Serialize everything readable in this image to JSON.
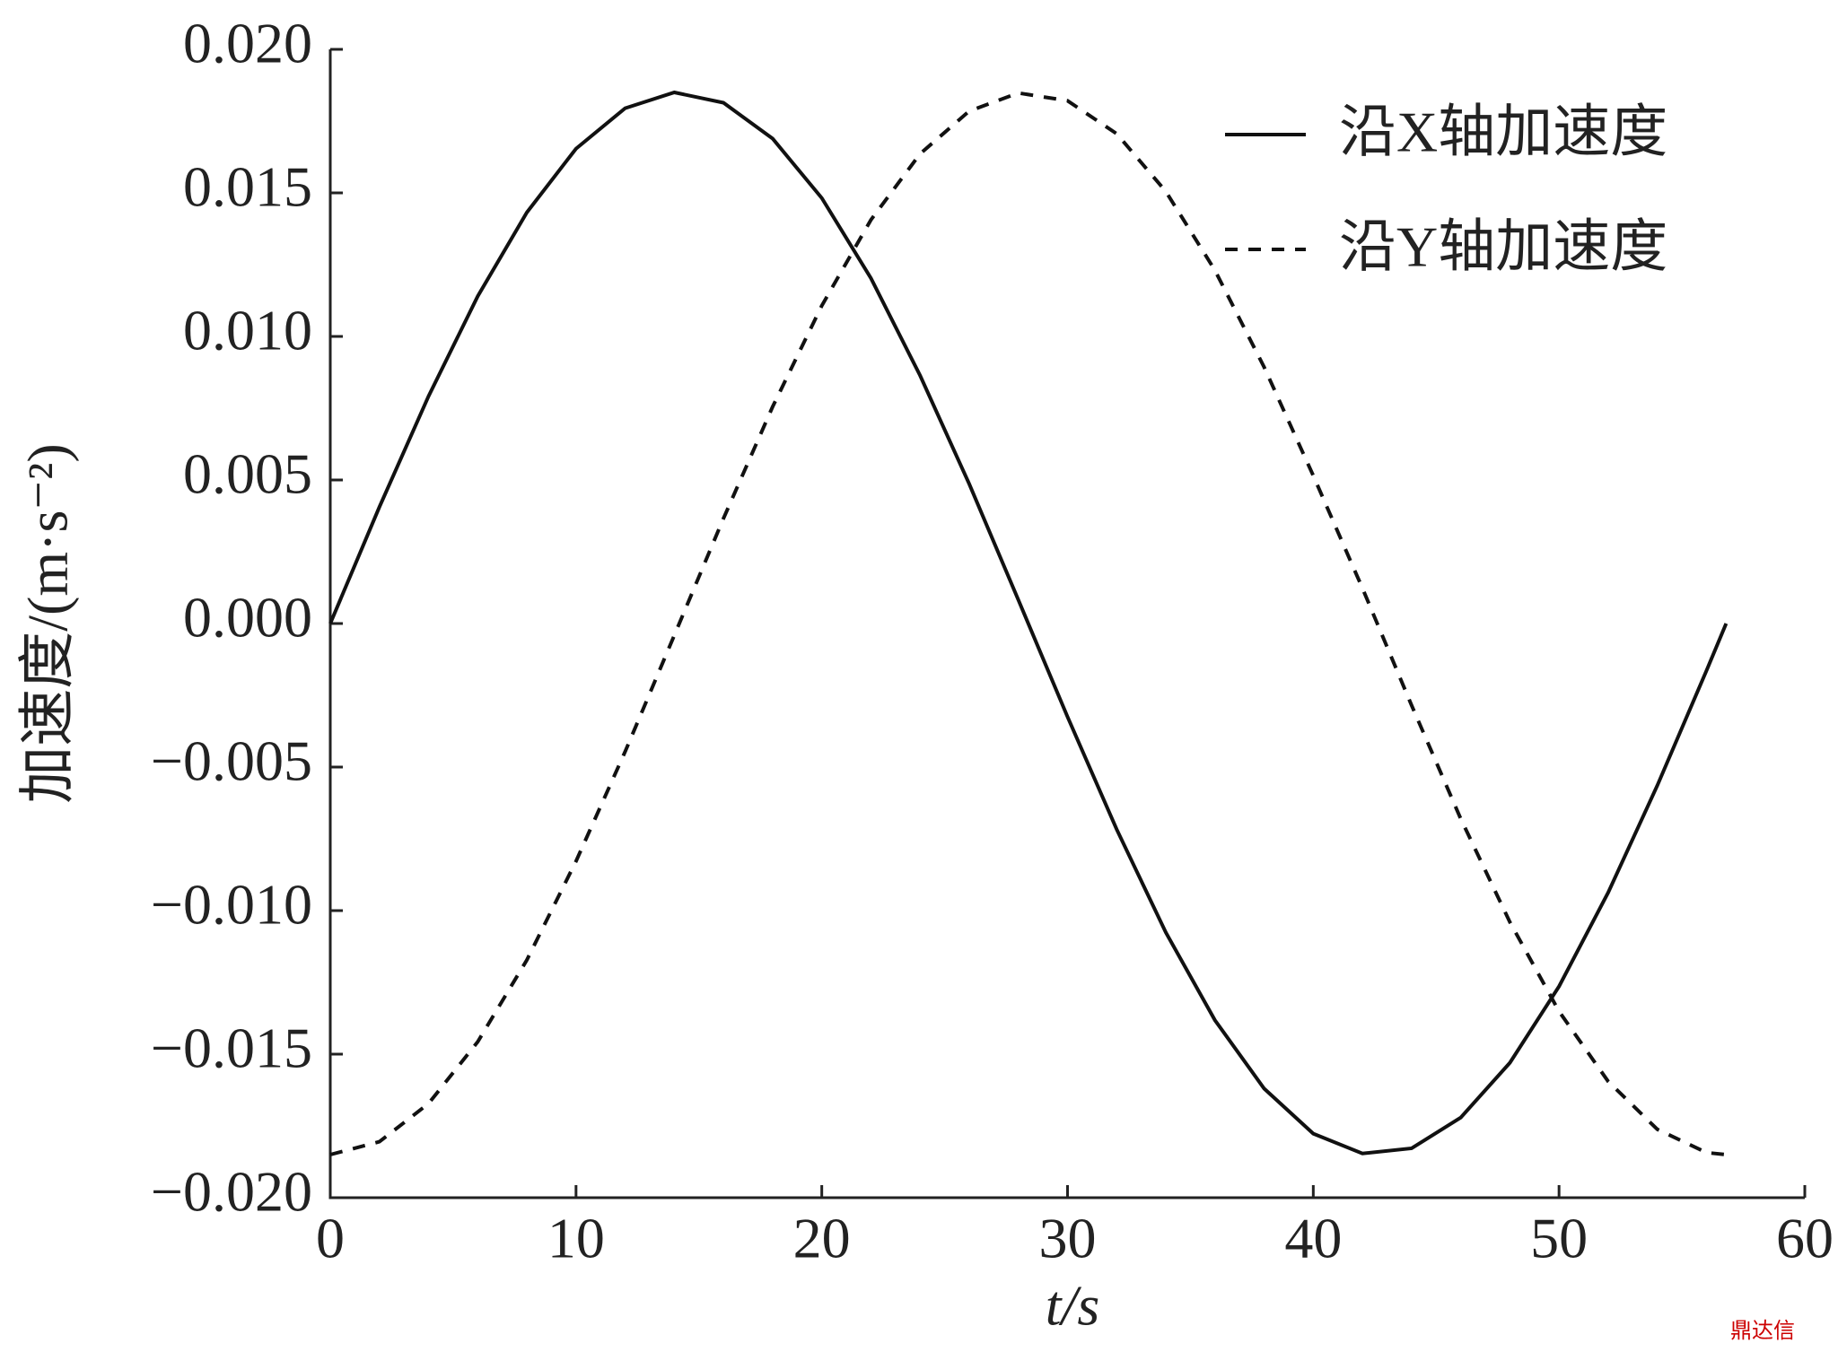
{
  "chart_data": {
    "type": "line",
    "x_label": "t/s",
    "y_label": "加速度/(m·s⁻²)",
    "x": [
      0,
      2,
      4,
      6,
      8,
      10,
      12,
      14,
      16,
      18,
      20,
      22,
      24,
      26,
      28,
      30,
      32,
      34,
      36,
      38,
      40,
      42,
      44,
      46,
      48,
      50,
      52,
      54,
      56,
      56.8
    ],
    "series": [
      {
        "name": "沿X轴加速度",
        "color": "#111111",
        "dash": "solid",
        "values": [
          0,
          0.00406,
          0.00792,
          0.0114,
          0.01432,
          0.01654,
          0.01795,
          0.0185,
          0.01814,
          0.01689,
          0.01482,
          0.01203,
          0.00864,
          0.00486,
          0.00082,
          -0.00325,
          -0.00717,
          -0.01076,
          -0.01382,
          -0.0162,
          -0.01777,
          -0.01846,
          -0.01828,
          -0.01721,
          -0.0153,
          -0.01264,
          -0.00937,
          -0.00564,
          -0.00164,
          0
        ]
      },
      {
        "name": "沿Y轴加速度",
        "color": "#111111",
        "dash": "dashed",
        "values": [
          -0.0185,
          -0.01805,
          -0.01672,
          -0.01457,
          -0.01172,
          -0.00828,
          -0.00446,
          -0.00041,
          0.00366,
          0.00755,
          0.01107,
          0.01406,
          0.01636,
          0.01785,
          0.01848,
          0.01821,
          0.01706,
          0.01505,
          0.0123,
          0.00893,
          0.00515,
          0.00123,
          -0.00285,
          -0.0068,
          -0.0104,
          -0.01351,
          -0.01595,
          -0.01762,
          -0.01843,
          -0.0185
        ]
      }
    ],
    "xlim": [
      0,
      60
    ],
    "xticks": [
      0,
      10,
      20,
      30,
      40,
      50,
      60
    ],
    "ylim": [
      -0.02,
      0.02
    ],
    "yticks": [
      {
        "value": -0.02,
        "label": "−0.020"
      },
      {
        "value": -0.015,
        "label": "−0.015"
      },
      {
        "value": -0.01,
        "label": "−0.010"
      },
      {
        "value": -0.005,
        "label": "−0.005"
      },
      {
        "value": 0,
        "label": "0.000"
      },
      {
        "value": 0.005,
        "label": "0.005"
      },
      {
        "value": 0.01,
        "label": "0.010"
      },
      {
        "value": 0.015,
        "label": "0.015"
      },
      {
        "value": 0.02,
        "label": "0.020"
      }
    ],
    "grid": false,
    "legend": "upper right",
    "watermark": "鼎达信"
  }
}
